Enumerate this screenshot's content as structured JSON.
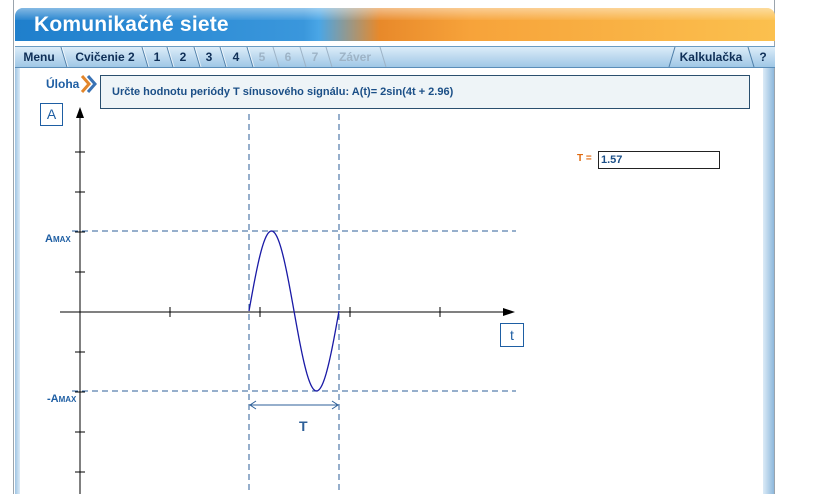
{
  "app": {
    "title": "Komunikačné siete"
  },
  "nav": {
    "tabs": [
      {
        "label": "Menu",
        "enabled": true
      },
      {
        "label": "Cvičenie 2",
        "enabled": true
      },
      {
        "label": "1",
        "enabled": true
      },
      {
        "label": "2",
        "enabled": true
      },
      {
        "label": "3",
        "enabled": true
      },
      {
        "label": "4",
        "enabled": true
      },
      {
        "label": "5",
        "enabled": false
      },
      {
        "label": "6",
        "enabled": false
      },
      {
        "label": "7",
        "enabled": false
      },
      {
        "label": "Záver",
        "enabled": false
      }
    ],
    "calculator_label": "Kalkulačka",
    "help_label": "?"
  },
  "task": {
    "label": "Úloha",
    "text": "Určte hodnotu periódy T sínusového signálu: A(t)= 2sin(4t + 2.96)"
  },
  "graph": {
    "y_axis_label": "A",
    "x_axis_label": "t",
    "amax_label_prefix": "A",
    "amax_label_sub": "MAX",
    "neg_amax_label_prefix": "-A",
    "neg_amax_label_sub": "MAX",
    "period_label": "T",
    "signal_color": "#1a1aa6",
    "guide_color": "#2d5f98"
  },
  "answer": {
    "label": "T =",
    "value": "1.57"
  },
  "colors": {
    "accent_blue": "#1f7fcc",
    "accent_orange": "#f7a33a",
    "label_orange": "#e06a10"
  }
}
